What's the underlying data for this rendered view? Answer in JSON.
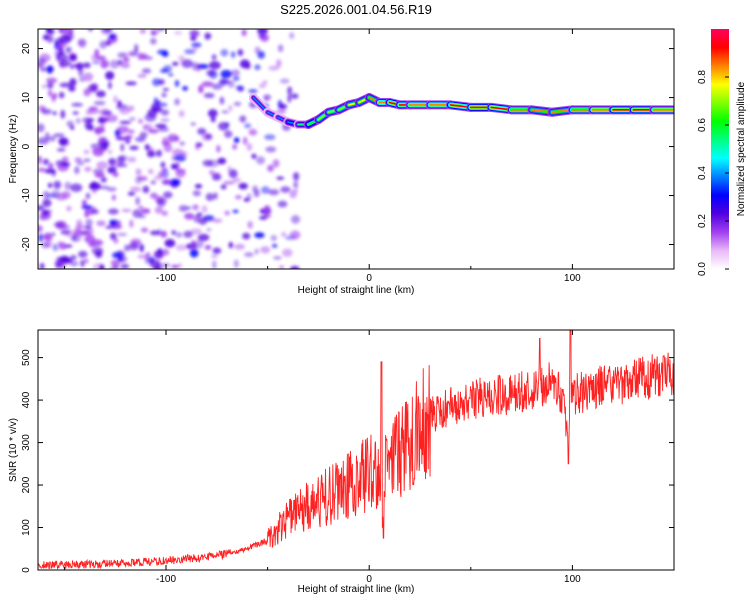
{
  "figure": {
    "title": "S225.2026.001.04.56.R19"
  },
  "chart_data": [
    {
      "type": "heatmap",
      "title": "S225.2026.001.04.56.R19",
      "xlabel": "Height of straight line (km)",
      "ylabel": "Frequency (Hz)",
      "xlim": [
        -163,
        150
      ],
      "ylim": [
        -25,
        24
      ],
      "xticks": [
        -100,
        0,
        100
      ],
      "xtick_labels": [
        "-100",
        "0",
        "100"
      ],
      "yticks": [
        -20,
        -10,
        0,
        10,
        20
      ],
      "ytick_labels": [
        "-20",
        "-10",
        "0",
        "10",
        "20"
      ],
      "colorbar": {
        "label": "Normalized spectral amplitude",
        "range": [
          0,
          1
        ],
        "ticks": [
          0,
          0.2,
          0.4,
          0.6,
          0.8
        ],
        "tick_labels": [
          "0.0",
          "0.2",
          "0.4",
          "0.6",
          "0.8"
        ],
        "colormap": [
          "#ffffff",
          "#e8b8f8",
          "#a040f0",
          "#5000e0",
          "#0000ff",
          "#0080ff",
          "#00ffff",
          "#00ff80",
          "#00ff00",
          "#80ff00",
          "#ffff00",
          "#ff8000",
          "#ff0000",
          "#ff0060"
        ]
      },
      "ridge": {
        "height_km": [
          -57,
          -50,
          -45,
          -40,
          -35,
          -30,
          -25,
          -20,
          -15,
          -10,
          -5,
          0,
          5,
          10,
          15,
          20,
          30,
          40,
          50,
          60,
          70,
          80,
          90,
          100,
          110,
          120,
          130,
          140,
          150
        ],
        "frequency_hz": [
          10,
          7,
          6,
          5,
          4.5,
          4.5,
          5.5,
          7,
          7.5,
          8.5,
          9,
          10,
          9,
          9,
          8.5,
          8.5,
          8.5,
          8.5,
          8,
          8,
          7.5,
          7.5,
          7,
          7.5,
          7.5,
          7.5,
          7.5,
          7.5,
          7.5
        ],
        "amplitude": [
          0.35,
          0.35,
          0.35,
          0.35,
          0.45,
          0.6,
          0.7,
          0.75,
          0.7,
          0.75,
          0.8,
          0.8,
          0.85,
          0.9,
          0.9,
          0.9,
          0.85,
          0.9,
          0.95,
          0.95,
          0.85,
          0.85,
          0.8,
          0.85,
          0.85,
          0.9,
          0.9,
          0.9,
          0.85
        ]
      },
      "noise_region": {
        "height_km": [
          -163,
          -35
        ],
        "frequency_hz": [
          -25,
          24
        ]
      }
    },
    {
      "type": "line",
      "title": "",
      "xlabel": "Height of straight line (km)",
      "ylabel": "SNR (10 * v/v)",
      "xlim": [
        -163,
        150
      ],
      "ylim": [
        0,
        565
      ],
      "xticks": [
        -100,
        0,
        100
      ],
      "xtick_labels": [
        "-100",
        "0",
        "100"
      ],
      "yticks": [
        0,
        100,
        200,
        300,
        400,
        500
      ],
      "ytick_labels": [
        "0",
        "100",
        "200",
        "300",
        "400",
        "500"
      ],
      "grid": false,
      "series": [
        {
          "name": "SNR",
          "color": "#ff2020",
          "x": [
            -163,
            -140,
            -120,
            -100,
            -80,
            -70,
            -60,
            -50,
            -45,
            -40,
            -35,
            -30,
            -25,
            -20,
            -15,
            -10,
            -5,
            0,
            3,
            5,
            6,
            8,
            10,
            15,
            20,
            25,
            30,
            40,
            50,
            60,
            70,
            80,
            85,
            90,
            95,
            98,
            100,
            110,
            120,
            130,
            140,
            150
          ],
          "values": [
            12,
            13,
            15,
            22,
            30,
            38,
            50,
            70,
            100,
            125,
            140,
            150,
            160,
            175,
            185,
            200,
            215,
            230,
            235,
            200,
            110,
            230,
            240,
            275,
            305,
            330,
            365,
            385,
            400,
            410,
            415,
            425,
            430,
            440,
            410,
            300,
            410,
            430,
            440,
            445,
            455,
            460
          ],
          "annotated_spikes": [
            {
              "x": 6,
              "value": 490
            },
            {
              "x": 7,
              "value": 75
            },
            {
              "x": 84,
              "value": 545
            },
            {
              "x": 98,
              "value": 250
            },
            {
              "x": 99,
              "value": 565
            }
          ]
        }
      ]
    }
  ]
}
